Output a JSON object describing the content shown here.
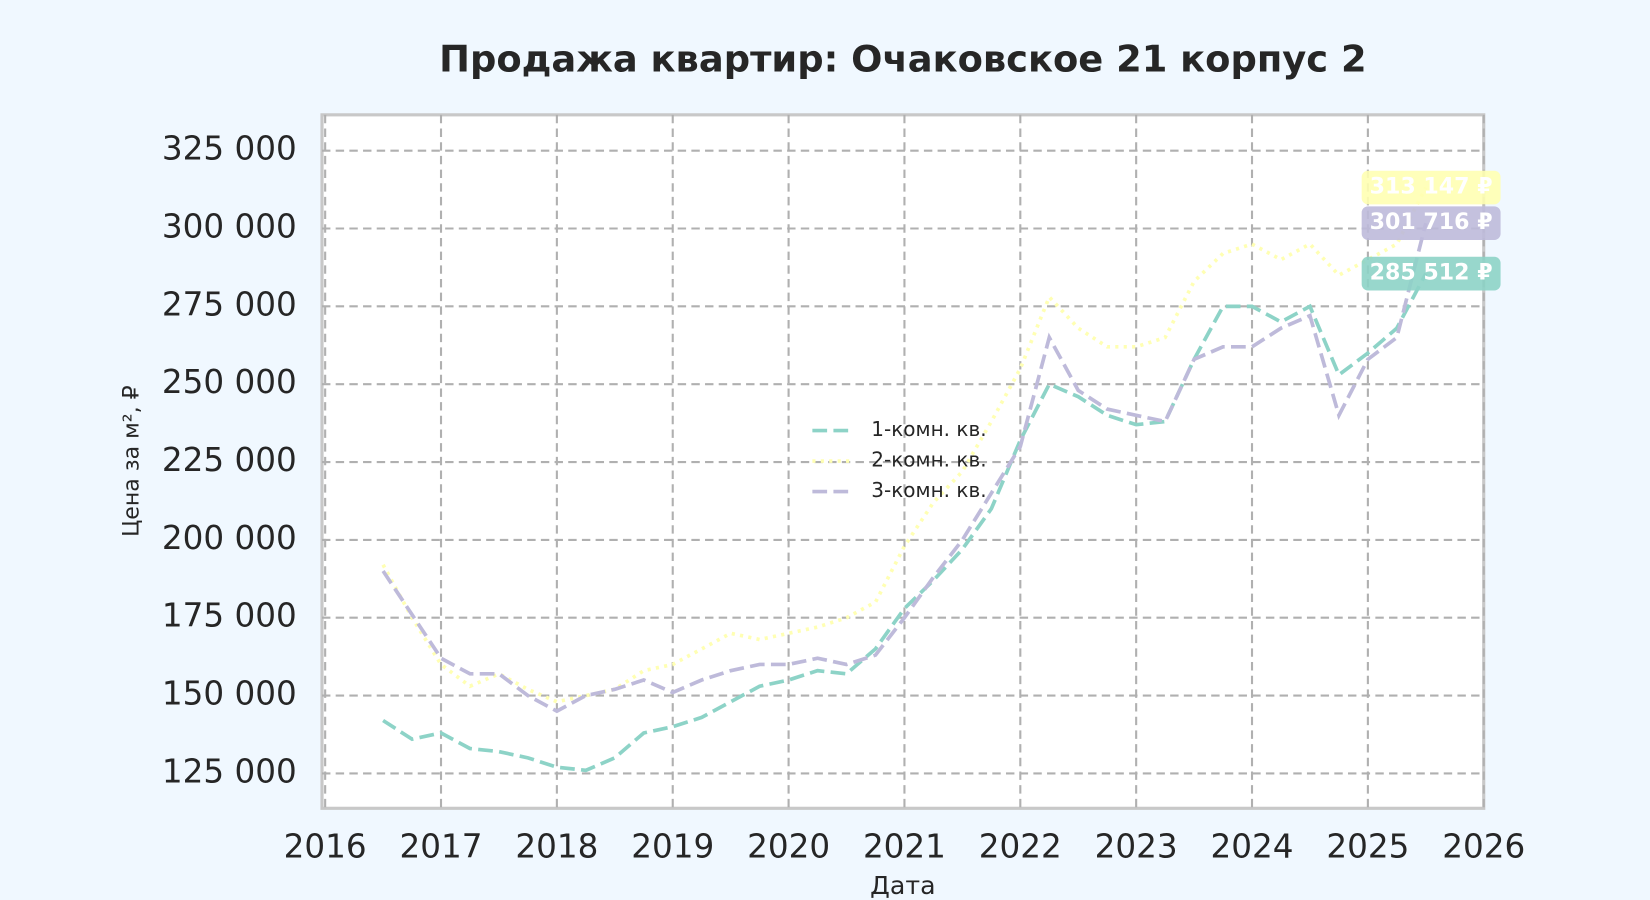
{
  "chart_data": {
    "type": "line",
    "title": "Продажа квартир: Очаковское 21 корпус 2",
    "x_label": "Дата",
    "y_label": "Цена за м², ₽",
    "x": [
      2016.5,
      2016.75,
      2017,
      2017.25,
      2017.5,
      2017.75,
      2018,
      2018.25,
      2018.5,
      2018.75,
      2019,
      2019.25,
      2019.5,
      2019.75,
      2020,
      2020.25,
      2020.5,
      2020.75,
      2021,
      2021.25,
      2021.5,
      2021.75,
      2022,
      2022.25,
      2022.5,
      2022.75,
      2023,
      2023.25,
      2023.5,
      2023.75,
      2024,
      2024.25,
      2024.5,
      2024.75,
      2025,
      2025.25,
      2025.5
    ],
    "series": [
      {
        "name": "1-комн. кв.",
        "color": "#8dd3c7",
        "linestyle": "dashed",
        "values": [
          142000,
          136000,
          138000,
          133000,
          132000,
          130000,
          127000,
          126000,
          130000,
          138000,
          140000,
          143000,
          148000,
          153000,
          155000,
          158000,
          157000,
          165000,
          178000,
          187000,
          197000,
          210000,
          232000,
          250000,
          246000,
          240000,
          237000,
          238000,
          258000,
          275000,
          275000,
          270000,
          275000,
          253000,
          260000,
          268000,
          285512
        ],
        "value_labels": [
          null,
          null,
          null,
          null,
          null,
          null,
          null,
          null,
          null,
          null,
          null,
          null,
          null,
          null,
          null,
          null,
          null,
          null,
          null,
          null,
          null,
          null,
          null,
          null,
          null,
          null,
          null,
          null,
          null,
          null,
          null,
          null,
          null,
          null,
          null,
          null,
          "285 512 ₽"
        ]
      },
      {
        "name": "2-комн. кв.",
        "color": "#ffffb3",
        "linestyle": "dotted",
        "values": [
          192000,
          175000,
          160000,
          153000,
          157000,
          152000,
          148000,
          150000,
          152000,
          158000,
          160000,
          165000,
          170000,
          168000,
          170000,
          172000,
          175000,
          180000,
          198000,
          212000,
          222000,
          238000,
          255000,
          278000,
          268000,
          262000,
          262000,
          265000,
          283000,
          292000,
          295000,
          290000,
          295000,
          285000,
          290000,
          295000,
          313147
        ],
        "value_labels": [
          null,
          null,
          null,
          null,
          null,
          null,
          null,
          null,
          null,
          null,
          null,
          null,
          null,
          null,
          null,
          null,
          null,
          null,
          null,
          null,
          null,
          null,
          null,
          null,
          null,
          null,
          null,
          null,
          null,
          null,
          null,
          null,
          null,
          null,
          null,
          null,
          "313 147 ₽"
        ]
      },
      {
        "name": "3-комн. кв.",
        "color": "#bebada",
        "linestyle": "dashed",
        "values": [
          190000,
          176000,
          162000,
          157000,
          157000,
          150000,
          145000,
          150000,
          152000,
          155000,
          151000,
          155000,
          158000,
          160000,
          160000,
          162000,
          160000,
          163000,
          175000,
          188000,
          200000,
          215000,
          230000,
          265000,
          248000,
          242000,
          240000,
          238000,
          258000,
          262000,
          262000,
          268000,
          272000,
          240000,
          258000,
          265000,
          301716
        ],
        "value_labels": [
          null,
          null,
          null,
          null,
          null,
          null,
          null,
          null,
          null,
          null,
          null,
          null,
          null,
          null,
          null,
          null,
          null,
          null,
          null,
          null,
          null,
          null,
          null,
          null,
          null,
          null,
          null,
          null,
          null,
          null,
          null,
          null,
          null,
          null,
          null,
          null,
          "301 716 ₽"
        ]
      }
    ],
    "xlim": [
      2016,
      2026
    ],
    "xticks": [
      2016,
      2017,
      2018,
      2019,
      2020,
      2021,
      2022,
      2023,
      2024,
      2025,
      2026
    ],
    "ylim": [
      113800,
      336500
    ],
    "yticks": [
      {
        "value": 125000,
        "label": "125 000"
      },
      {
        "value": 150000,
        "label": "150 000"
      },
      {
        "value": 175000,
        "label": "175 000"
      },
      {
        "value": 200000,
        "label": "200 000"
      },
      {
        "value": 225000,
        "label": "225 000"
      },
      {
        "value": 250000,
        "label": "250 000"
      },
      {
        "value": 275000,
        "label": "275 000"
      },
      {
        "value": 300000,
        "label": "300 000"
      },
      {
        "value": 325000,
        "label": "325 000"
      }
    ],
    "grid": true,
    "legend": "center"
  }
}
